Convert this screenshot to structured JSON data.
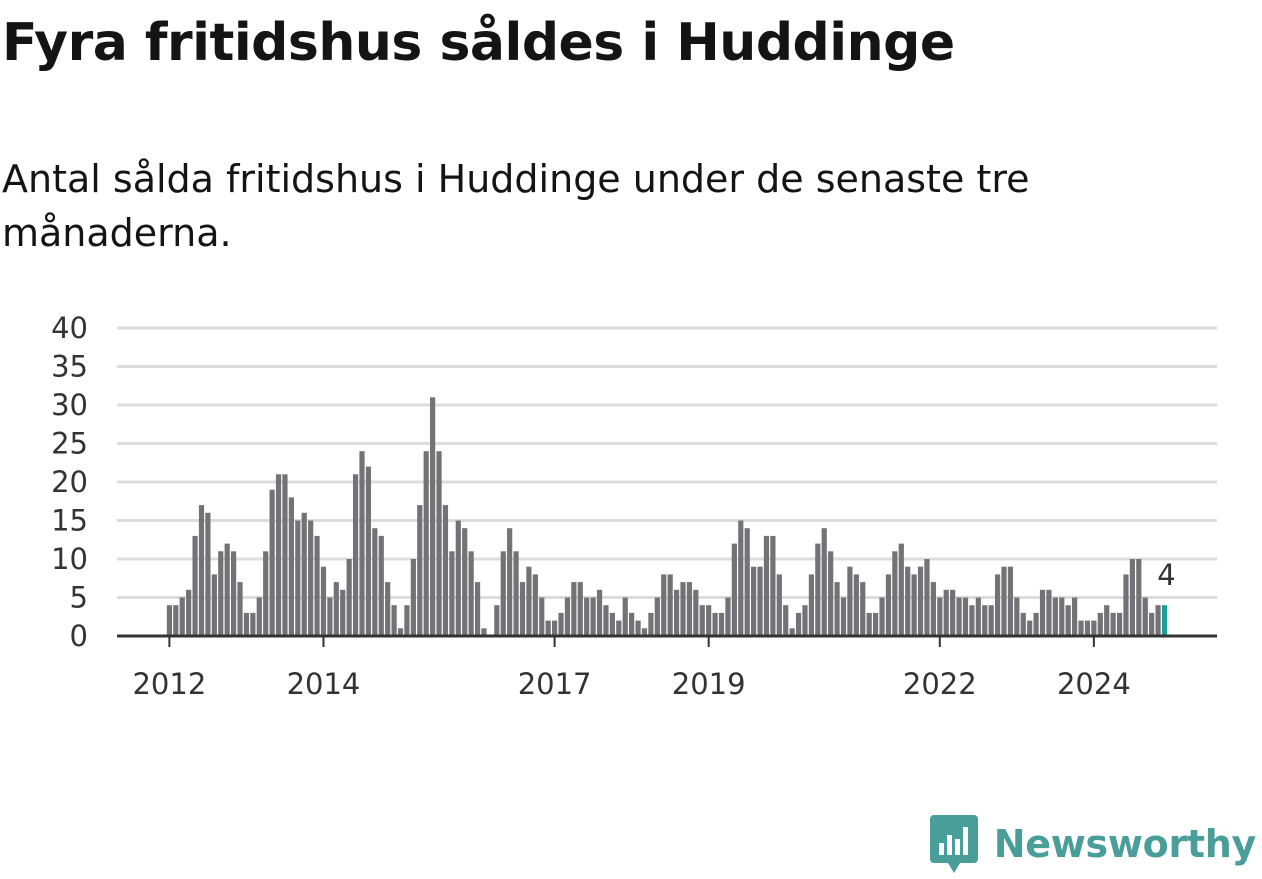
{
  "title": "Fyra fritidshus såldes i Huddinge",
  "subtitle": "Antal sålda fritidshus i Huddinge under de senaste tre månaderna.",
  "brand": {
    "name": "Newsworthy",
    "icon": "newsworthy-logo-icon",
    "color": "#4a9e9a"
  },
  "colors": {
    "bar": "#737277",
    "highlight": "#1e9c95",
    "grid": "#dcdcdc",
    "axis": "#333333"
  },
  "chart_data": {
    "type": "bar",
    "title": "",
    "xlabel": "",
    "ylabel": "",
    "ylim": [
      0,
      40
    ],
    "yticks": [
      0,
      5,
      10,
      15,
      20,
      25,
      30,
      35,
      40
    ],
    "grid": true,
    "x_start": "2012-01",
    "x_end": "2025-07",
    "x_tick_labels": [
      {
        "label": "2012",
        "date": "2012-01"
      },
      {
        "label": "2014",
        "date": "2014-01"
      },
      {
        "label": "2017",
        "date": "2017-01"
      },
      {
        "label": "2019",
        "date": "2019-01"
      },
      {
        "label": "2022",
        "date": "2022-01"
      },
      {
        "label": "2024",
        "date": "2024-01"
      }
    ],
    "values": [
      4,
      4,
      5,
      6,
      13,
      17,
      16,
      8,
      11,
      12,
      11,
      7,
      3,
      3,
      5,
      11,
      19,
      21,
      21,
      18,
      15,
      16,
      15,
      13,
      9,
      5,
      7,
      6,
      10,
      21,
      24,
      22,
      14,
      13,
      7,
      4,
      1,
      4,
      10,
      17,
      24,
      31,
      24,
      17,
      11,
      15,
      14,
      11,
      7,
      1,
      0,
      4,
      11,
      14,
      11,
      7,
      9,
      8,
      5,
      2,
      2,
      3,
      5,
      7,
      7,
      5,
      5,
      6,
      4,
      3,
      2,
      5,
      3,
      2,
      1,
      3,
      5,
      8,
      8,
      6,
      7,
      7,
      6,
      4,
      4,
      3,
      3,
      5,
      12,
      15,
      14,
      9,
      9,
      13,
      13,
      8,
      4,
      1,
      3,
      4,
      8,
      12,
      14,
      11,
      7,
      5,
      9,
      8,
      7,
      3,
      3,
      5,
      8,
      11,
      12,
      9,
      8,
      9,
      10,
      7,
      5,
      6,
      6,
      5,
      5,
      4,
      5,
      4,
      4,
      8,
      9,
      9,
      5,
      3,
      2,
      3,
      6,
      6,
      5,
      5,
      4,
      5,
      2,
      2,
      2,
      3,
      4,
      3,
      3,
      8,
      10,
      10,
      5,
      3,
      4,
      4
    ],
    "highlight": {
      "index": 155,
      "value": 4,
      "label": "4"
    }
  }
}
